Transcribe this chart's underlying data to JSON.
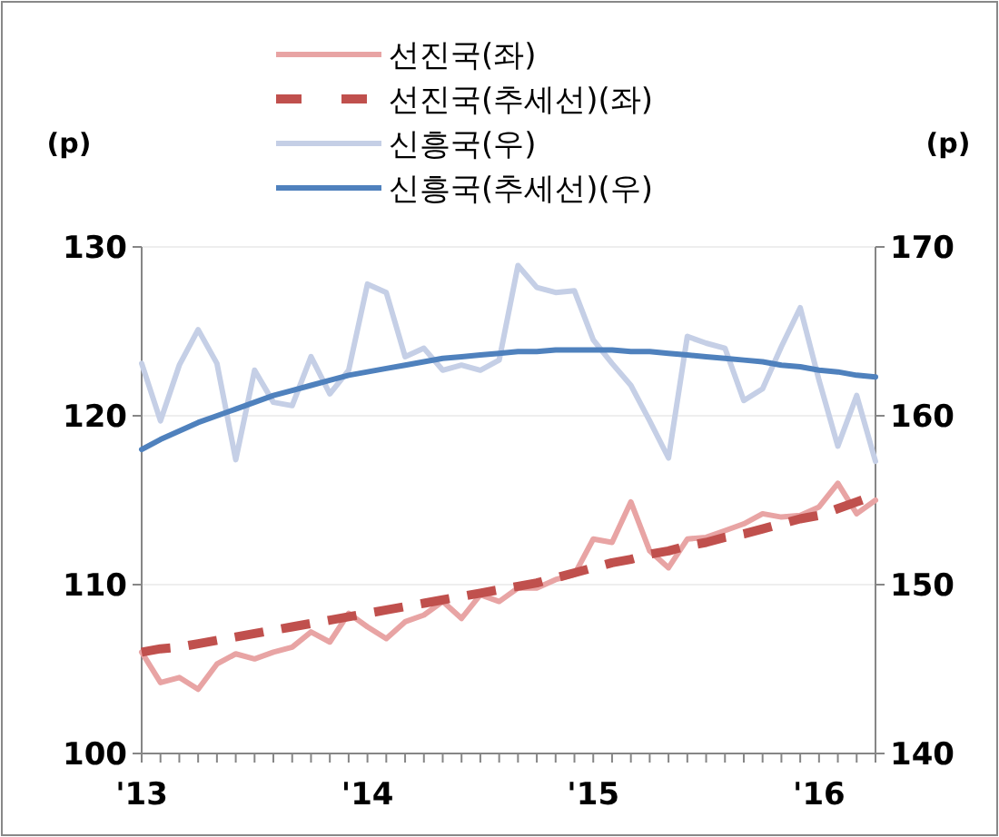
{
  "chart_data": {
    "type": "line",
    "ylabel": "(p)",
    "y2label": "(p)",
    "x": [
      "2013-01",
      "2013-02",
      "2013-03",
      "2013-04",
      "2013-05",
      "2013-06",
      "2013-07",
      "2013-08",
      "2013-09",
      "2013-10",
      "2013-11",
      "2013-12",
      "2014-01",
      "2014-02",
      "2014-03",
      "2014-04",
      "2014-05",
      "2014-06",
      "2014-07",
      "2014-08",
      "2014-09",
      "2014-10",
      "2014-11",
      "2014-12",
      "2015-01",
      "2015-02",
      "2015-03",
      "2015-04",
      "2015-05",
      "2015-06",
      "2015-07",
      "2015-08",
      "2015-09",
      "2015-10",
      "2015-11",
      "2015-12",
      "2016-01",
      "2016-02",
      "2016-03",
      "2016-04"
    ],
    "series": [
      {
        "name": "선진국(좌)",
        "color": "#e8a4a4",
        "values": [
          106.0,
          104.2,
          104.5,
          103.8,
          105.3,
          105.9,
          105.6,
          106.0,
          106.3,
          107.2,
          106.6,
          108.3,
          107.5,
          106.8,
          107.8,
          108.2,
          109.0,
          108.0,
          109.4,
          109.0,
          109.8,
          109.8,
          110.3,
          110.6,
          112.7,
          112.5,
          114.9,
          112.0,
          111.0,
          112.7,
          112.8,
          113.2,
          113.6,
          114.2,
          114.0,
          114.1,
          114.6,
          116.0,
          114.2,
          115.0
        ]
      },
      {
        "name": "선진국(추세선)(좌)",
        "color": "#c0504d",
        "line_style": "dashed",
        "values": [
          106.0,
          106.2,
          106.3,
          106.5,
          106.7,
          106.9,
          107.1,
          107.3,
          107.5,
          107.7,
          107.9,
          108.1,
          108.3,
          108.5,
          108.7,
          108.9,
          109.1,
          109.3,
          109.5,
          109.7,
          109.9,
          110.1,
          110.4,
          110.7,
          111.0,
          111.3,
          111.5,
          111.8,
          112.0,
          112.3,
          112.5,
          112.8,
          113.0,
          113.3,
          113.6,
          113.9,
          114.1,
          114.5,
          114.9,
          115.3
        ]
      },
      {
        "name": "신흥국(우)",
        "color": "#c5cfe6",
        "axis": "y2",
        "values": [
          163.1,
          159.7,
          163.0,
          165.1,
          163.1,
          157.4,
          162.7,
          160.8,
          160.6,
          163.5,
          161.3,
          162.7,
          167.8,
          167.3,
          163.5,
          164.0,
          162.7,
          163.0,
          162.7,
          163.3,
          168.9,
          167.6,
          167.3,
          167.4,
          164.5,
          163.1,
          161.8,
          159.7,
          157.5,
          164.7,
          164.3,
          164.0,
          160.9,
          161.6,
          164.1,
          166.4,
          162.1,
          158.2,
          161.2,
          157.3
        ]
      },
      {
        "name": "신흥국(추세선)(우)",
        "color": "#4f81bd",
        "axis": "y2",
        "values": [
          158.0,
          158.6,
          159.1,
          159.6,
          160.0,
          160.4,
          160.8,
          161.2,
          161.5,
          161.8,
          162.1,
          162.4,
          162.6,
          162.8,
          163.0,
          163.2,
          163.4,
          163.5,
          163.6,
          163.7,
          163.8,
          163.8,
          163.9,
          163.9,
          163.9,
          163.9,
          163.8,
          163.8,
          163.7,
          163.6,
          163.5,
          163.4,
          163.3,
          163.2,
          163.0,
          162.9,
          162.7,
          162.6,
          162.4,
          162.3
        ]
      }
    ],
    "xlim": [
      "2013-01",
      "2016-04"
    ],
    "xticks": [
      {
        "value": "2013-01",
        "label": "'13"
      },
      {
        "value": "2013-02",
        "label": null
      },
      {
        "value": "2013-03",
        "label": null
      },
      {
        "value": "2013-04",
        "label": null
      },
      {
        "value": "2013-05",
        "label": null
      },
      {
        "value": "2013-06",
        "label": null
      },
      {
        "value": "2013-07",
        "label": null
      },
      {
        "value": "2013-08",
        "label": null
      },
      {
        "value": "2013-09",
        "label": null
      },
      {
        "value": "2013-10",
        "label": null
      },
      {
        "value": "2013-11",
        "label": null
      },
      {
        "value": "2013-12",
        "label": null
      },
      {
        "value": "2014-01",
        "label": "'14"
      },
      {
        "value": "2014-02",
        "label": null
      },
      {
        "value": "2014-03",
        "label": null
      },
      {
        "value": "2014-04",
        "label": null
      },
      {
        "value": "2014-05",
        "label": null
      },
      {
        "value": "2014-06",
        "label": null
      },
      {
        "value": "2014-07",
        "label": null
      },
      {
        "value": "2014-08",
        "label": null
      },
      {
        "value": "2014-09",
        "label": null
      },
      {
        "value": "2014-10",
        "label": null
      },
      {
        "value": "2014-11",
        "label": null
      },
      {
        "value": "2014-12",
        "label": null
      },
      {
        "value": "2015-01",
        "label": "'15"
      },
      {
        "value": "2015-02",
        "label": null
      },
      {
        "value": "2015-03",
        "label": null
      },
      {
        "value": "2015-04",
        "label": null
      },
      {
        "value": "2015-05",
        "label": null
      },
      {
        "value": "2015-06",
        "label": null
      },
      {
        "value": "2015-07",
        "label": null
      },
      {
        "value": "2015-08",
        "label": null
      },
      {
        "value": "2015-09",
        "label": null
      },
      {
        "value": "2015-10",
        "label": null
      },
      {
        "value": "2015-11",
        "label": null
      },
      {
        "value": "2015-12",
        "label": null
      },
      {
        "value": "2016-01",
        "label": "'16"
      },
      {
        "value": "2016-02",
        "label": null
      },
      {
        "value": "2016-03",
        "label": null
      },
      {
        "value": "2016-04",
        "label": null
      }
    ],
    "ylim": [
      100,
      130
    ],
    "yticks": [
      100,
      110,
      120,
      130
    ],
    "y2lim": [
      140,
      170
    ],
    "y2ticks": [
      140,
      150,
      160,
      170
    ],
    "grid": "y",
    "legend": "top"
  }
}
